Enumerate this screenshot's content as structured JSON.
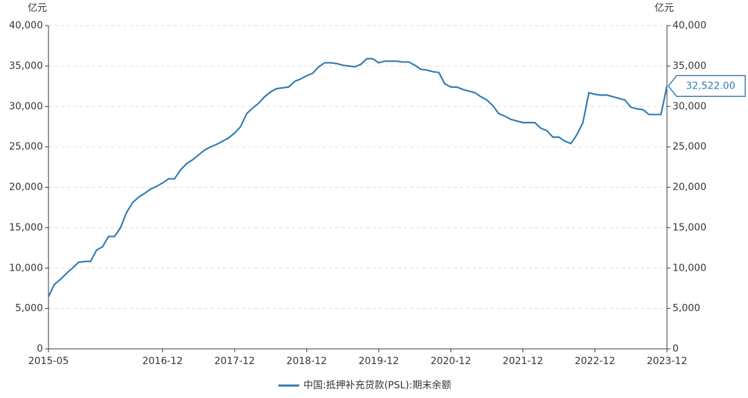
{
  "chart_data": {
    "type": "line",
    "y_label": "亿元",
    "y2_label": "亿元",
    "categories": [
      "2015-05",
      null,
      null,
      null,
      null,
      null,
      null,
      null,
      null,
      null,
      null,
      null,
      null,
      null,
      null,
      null,
      null,
      null,
      null,
      "2016-12",
      null,
      null,
      null,
      null,
      null,
      null,
      null,
      null,
      null,
      null,
      null,
      "2017-12",
      null,
      null,
      null,
      null,
      null,
      null,
      null,
      null,
      null,
      null,
      null,
      "2018-12",
      null,
      null,
      null,
      null,
      null,
      null,
      null,
      null,
      null,
      null,
      null,
      "2019-12",
      null,
      null,
      null,
      null,
      null,
      null,
      null,
      null,
      null,
      null,
      null,
      "2020-12",
      null,
      null,
      null,
      null,
      null,
      null,
      null,
      null,
      null,
      null,
      null,
      "2021-12",
      null,
      null,
      null,
      null,
      null,
      null,
      null,
      null,
      null,
      null,
      null,
      "2022-12",
      null,
      null,
      null,
      null,
      null,
      null,
      null,
      null,
      null,
      null,
      null,
      "2023-12"
    ],
    "series": [
      {
        "name": "中国:抵押补充贷款(PSL):期末余额",
        "color": "#2f7ab0",
        "values": [
          6459,
          7995,
          8601,
          9339,
          10000,
          10700,
          10811,
          10811,
          12212,
          12630,
          13906,
          13906,
          14996,
          16874,
          18075,
          18770,
          19232,
          19768,
          20100,
          20526,
          21044,
          21044,
          22157,
          22918,
          23400,
          24000,
          24600,
          25000,
          25300,
          25700,
          26100,
          26700,
          27500,
          29100,
          29800,
          30400,
          31200,
          31800,
          32200,
          32300,
          32400,
          33100,
          33400,
          33800,
          34100,
          34900,
          35400,
          35400,
          35300,
          35100,
          35000,
          34900,
          35200,
          35900,
          35900,
          35400,
          35600,
          35600,
          35600,
          35500,
          35500,
          35100,
          34600,
          34500,
          34300,
          34200,
          32800,
          32400,
          32400,
          32100,
          31900,
          31700,
          31200,
          30800,
          30100,
          29100,
          28800,
          28400,
          28200,
          28000,
          28000,
          28000,
          27300,
          27000,
          26200,
          26200,
          25700,
          25400,
          26500,
          28000,
          31700,
          31500,
          31400,
          31400,
          31200,
          31000,
          30800,
          29900,
          29700,
          29600,
          29000,
          29000,
          29000,
          32522
        ],
        "value_labels": [
          null,
          null,
          null,
          null,
          null,
          null,
          null,
          null,
          null,
          null,
          null,
          null,
          null,
          null,
          null,
          null,
          null,
          null,
          null,
          null,
          null,
          null,
          null,
          null,
          null,
          null,
          null,
          null,
          null,
          null,
          null,
          null,
          null,
          null,
          null,
          null,
          null,
          null,
          null,
          null,
          null,
          null,
          null,
          null,
          null,
          null,
          null,
          null,
          null,
          null,
          null,
          null,
          null,
          null,
          null,
          null,
          null,
          null,
          null,
          null,
          null,
          null,
          null,
          null,
          null,
          null,
          null,
          null,
          null,
          null,
          null,
          null,
          null,
          null,
          null,
          null,
          null,
          null,
          null,
          null,
          null,
          null,
          null,
          null,
          null,
          null,
          null,
          null,
          null,
          null,
          null,
          null,
          null,
          null,
          null,
          null,
          null,
          null,
          null,
          null,
          null,
          null,
          null,
          "32,522.00"
        ]
      }
    ],
    "ylim": [
      0,
      40000
    ],
    "yticks": [
      0,
      {
        "value": 5000,
        "label": "5,000"
      },
      {
        "value": 10000,
        "label": "10,000"
      },
      {
        "value": 15000,
        "label": "15,000"
      },
      {
        "value": 20000,
        "label": "20,000"
      },
      {
        "value": 25000,
        "label": "25,000"
      },
      {
        "value": 30000,
        "label": "30,000"
      },
      {
        "value": 35000,
        "label": "35,000"
      },
      {
        "value": 40000,
        "label": "40,000"
      }
    ],
    "y2lim": [
      0,
      40000
    ],
    "y2ticks": [
      0,
      {
        "value": 5000,
        "label": "5,000"
      },
      {
        "value": 10000,
        "label": "10,000"
      },
      {
        "value": 15000,
        "label": "15,000"
      },
      {
        "value": 20000,
        "label": "20,000"
      },
      {
        "value": 25000,
        "label": "25,000"
      },
      {
        "value": 30000,
        "label": "30,000"
      },
      {
        "value": 35000,
        "label": "35,000"
      },
      {
        "value": 40000,
        "label": "40,000"
      }
    ],
    "grid": true,
    "legend": "bottom"
  }
}
